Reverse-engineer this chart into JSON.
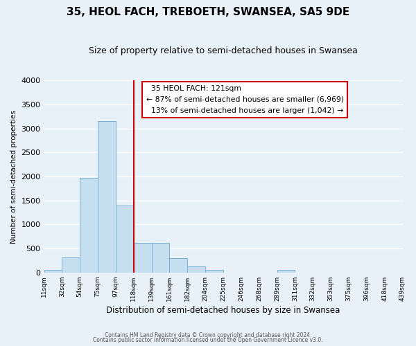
{
  "title": "35, HEOL FACH, TREBOETH, SWANSEA, SA5 9DE",
  "subtitle": "Size of property relative to semi-detached houses in Swansea",
  "xlabel": "Distribution of semi-detached houses by size in Swansea",
  "ylabel": "Number of semi-detached properties",
  "bar_color": "#c5dff0",
  "bar_edge_color": "#7bafd4",
  "background_color": "#e8f0f8",
  "grid_color": "#ffffff",
  "bin_labels": [
    "11sqm",
    "32sqm",
    "54sqm",
    "75sqm",
    "97sqm",
    "118sqm",
    "139sqm",
    "161sqm",
    "182sqm",
    "204sqm",
    "225sqm",
    "246sqm",
    "268sqm",
    "289sqm",
    "311sqm",
    "332sqm",
    "353sqm",
    "375sqm",
    "396sqm",
    "418sqm",
    "439sqm"
  ],
  "counts": [
    50,
    310,
    1970,
    3160,
    1390,
    615,
    615,
    295,
    120,
    55,
    0,
    0,
    0,
    50,
    0,
    0,
    0,
    0,
    0,
    0
  ],
  "marker_bin": 5,
  "marker_label": "35 HEOL FACH: 121sqm",
  "pct_smaller": 87,
  "n_smaller": 6969,
  "pct_larger": 13,
  "n_larger": 1042,
  "annotation_box_color": "#ffffff",
  "annotation_box_edge_color": "#cc0000",
  "vline_color": "#cc0000",
  "ylim": [
    0,
    4000
  ],
  "yticks": [
    0,
    500,
    1000,
    1500,
    2000,
    2500,
    3000,
    3500,
    4000
  ],
  "title_fontsize": 11,
  "subtitle_fontsize": 9,
  "footer1": "Contains HM Land Registry data © Crown copyright and database right 2024.",
  "footer2": "Contains public sector information licensed under the Open Government Licence v3.0."
}
